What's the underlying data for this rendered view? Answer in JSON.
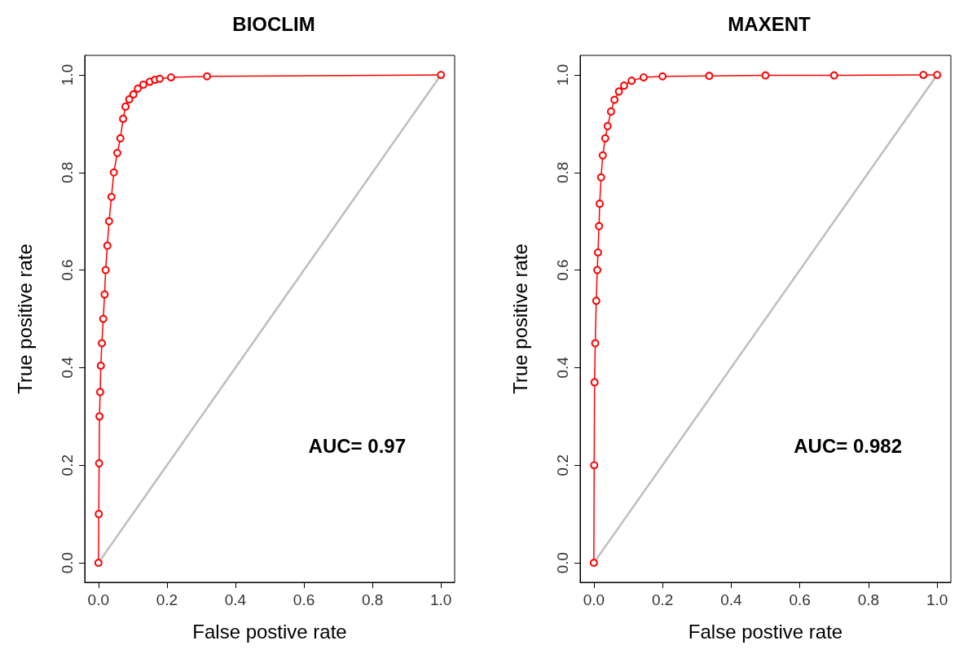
{
  "chart_data": [
    {
      "type": "line",
      "title": "BIOCLIM",
      "xlabel": "False postive rate",
      "ylabel": "True positive rate",
      "annotations": [
        "AUC= 0.97"
      ],
      "marker": "circle",
      "grid": false,
      "xlim": [
        -0.04,
        1.04
      ],
      "ylim": [
        -0.04,
        1.04
      ],
      "xticks": [
        {
          "value": 0,
          "label": "0.0"
        },
        {
          "value": 0.2,
          "label": "0.2"
        },
        {
          "value": 0.4,
          "label": "0.4"
        },
        {
          "value": 0.6,
          "label": "0.6"
        },
        {
          "value": 0.8,
          "label": "0.8"
        },
        {
          "value": 1,
          "label": "1.0"
        }
      ],
      "yticks": [
        {
          "value": 0,
          "label": "0.0"
        },
        {
          "value": 0.2,
          "label": "0.2"
        },
        {
          "value": 0.4,
          "label": "0.4"
        },
        {
          "value": 0.6,
          "label": "0.6"
        },
        {
          "value": 0.8,
          "label": "0.8"
        },
        {
          "value": 1,
          "label": "1.0"
        }
      ],
      "series": [
        {
          "color": "#ff0000",
          "x": [
            0,
            0.001,
            0.002,
            0.003,
            0.005,
            0.007,
            0.01,
            0.014,
            0.018,
            0.021,
            0.026,
            0.031,
            0.038,
            0.045,
            0.055,
            0.064,
            0.072,
            0.079,
            0.09,
            0.102,
            0.115,
            0.131,
            0.15,
            0.165,
            0.179,
            0.212,
            0.317,
            1
          ],
          "values": [
            0,
            0.1,
            0.204,
            0.3,
            0.35,
            0.404,
            0.45,
            0.5,
            0.55,
            0.6,
            0.65,
            0.7,
            0.75,
            0.8,
            0.84,
            0.87,
            0.91,
            0.935,
            0.95,
            0.96,
            0.972,
            0.98,
            0.986,
            0.99,
            0.992,
            0.995,
            0.997,
            1
          ]
        },
        {
          "color": "#bebebe",
          "marker": "none",
          "x": [
            0,
            1
          ],
          "values": [
            0,
            1
          ]
        }
      ]
    },
    {
      "type": "line",
      "title": "MAXENT",
      "xlabel": "False postive rate",
      "ylabel": "True positive rate",
      "annotations": [
        "AUC= 0.982"
      ],
      "marker": "circle",
      "grid": false,
      "xlim": [
        -0.04,
        1.04
      ],
      "ylim": [
        -0.04,
        1.04
      ],
      "xticks": [
        {
          "value": 0,
          "label": "0.0"
        },
        {
          "value": 0.2,
          "label": "0.2"
        },
        {
          "value": 0.4,
          "label": "0.4"
        },
        {
          "value": 0.6,
          "label": "0.6"
        },
        {
          "value": 0.8,
          "label": "0.8"
        },
        {
          "value": 1,
          "label": "1.0"
        }
      ],
      "yticks": [
        {
          "value": 0,
          "label": "0.0"
        },
        {
          "value": 0.2,
          "label": "0.2"
        },
        {
          "value": 0.4,
          "label": "0.4"
        },
        {
          "value": 0.6,
          "label": "0.6"
        },
        {
          "value": 0.8,
          "label": "0.8"
        },
        {
          "value": 1,
          "label": "1.0"
        }
      ],
      "series": [
        {
          "color": "#ff0000",
          "x": [
            0,
            0.001,
            0.002,
            0.004,
            0.007,
            0.01,
            0.012,
            0.015,
            0.017,
            0.021,
            0.026,
            0.033,
            0.04,
            0.05,
            0.06,
            0.073,
            0.088,
            0.11,
            0.145,
            0.2,
            0.336,
            0.5,
            0.7,
            0.96,
            1
          ],
          "values": [
            0,
            0.2,
            0.37,
            0.45,
            0.537,
            0.6,
            0.636,
            0.69,
            0.736,
            0.79,
            0.835,
            0.87,
            0.895,
            0.925,
            0.949,
            0.966,
            0.978,
            0.988,
            0.995,
            0.997,
            0.998,
            0.999,
            0.999,
            1,
            1
          ]
        },
        {
          "color": "#bebebe",
          "marker": "none",
          "x": [
            0,
            1
          ],
          "values": [
            0,
            1
          ]
        }
      ]
    }
  ]
}
